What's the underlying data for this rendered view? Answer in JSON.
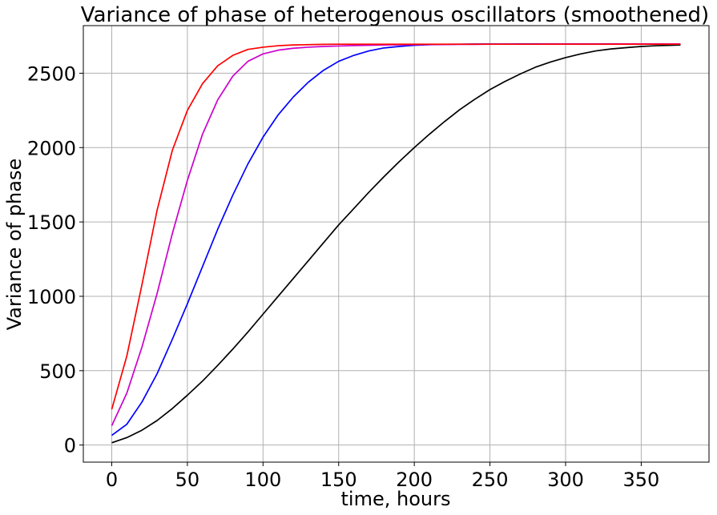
{
  "chart_data": {
    "type": "line",
    "title": "Variance of phase of heterogenous oscillators (smoothened)",
    "xlabel": "time, hours",
    "ylabel": "Variance of phase",
    "xlim": [
      -18.8,
      394.8
    ],
    "ylim": [
      -115,
      2820
    ],
    "xticks": [
      0,
      50,
      100,
      150,
      200,
      250,
      300,
      350
    ],
    "yticks": [
      0,
      500,
      1000,
      1500,
      2000,
      2500
    ],
    "grid": true,
    "colors": {
      "grid": "#b0b0b0",
      "axis": "#000000"
    },
    "x": [
      0,
      10,
      20,
      30,
      40,
      50,
      60,
      70,
      80,
      90,
      100,
      110,
      120,
      130,
      140,
      150,
      160,
      170,
      180,
      190,
      200,
      210,
      220,
      230,
      240,
      250,
      260,
      270,
      280,
      290,
      300,
      310,
      320,
      330,
      340,
      350,
      360,
      370,
      376
    ],
    "series": [
      {
        "color": "#000000",
        "values": [
          15,
          50,
          100,
          165,
          245,
          335,
          430,
          535,
          645,
          760,
          880,
          1000,
          1120,
          1240,
          1360,
          1480,
          1590,
          1700,
          1805,
          1905,
          2000,
          2090,
          2175,
          2255,
          2325,
          2390,
          2445,
          2495,
          2540,
          2575,
          2605,
          2630,
          2650,
          2663,
          2672,
          2680,
          2685,
          2688,
          2690
        ]
      },
      {
        "color": "#0000ff",
        "values": [
          65,
          140,
          290,
          480,
          710,
          950,
          1200,
          1450,
          1680,
          1890,
          2070,
          2220,
          2340,
          2440,
          2520,
          2580,
          2620,
          2650,
          2670,
          2680,
          2688,
          2692,
          2694,
          2695,
          2696,
          2696,
          2696,
          2697,
          2697,
          2697,
          2697,
          2697,
          2697,
          2697,
          2697,
          2697,
          2697,
          2697,
          2697
        ]
      },
      {
        "color": "#cc00cc",
        "values": [
          130,
          350,
          660,
          1020,
          1420,
          1780,
          2090,
          2320,
          2480,
          2580,
          2630,
          2655,
          2668,
          2675,
          2680,
          2683,
          2686,
          2688,
          2690,
          2691,
          2692,
          2693,
          2693,
          2694,
          2694,
          2695,
          2695,
          2695,
          2695,
          2696,
          2696,
          2696,
          2696,
          2696,
          2697,
          2697,
          2697,
          2697,
          2697
        ]
      },
      {
        "color": "#ff0000",
        "values": [
          240,
          600,
          1080,
          1580,
          1980,
          2250,
          2430,
          2550,
          2620,
          2660,
          2675,
          2685,
          2690,
          2692,
          2694,
          2695,
          2695,
          2695,
          2695,
          2695,
          2695,
          2695,
          2695,
          2695,
          2695,
          2695,
          2695,
          2695,
          2695,
          2695,
          2695,
          2695,
          2695,
          2695,
          2695,
          2695,
          2695,
          2695,
          2695
        ]
      }
    ]
  }
}
